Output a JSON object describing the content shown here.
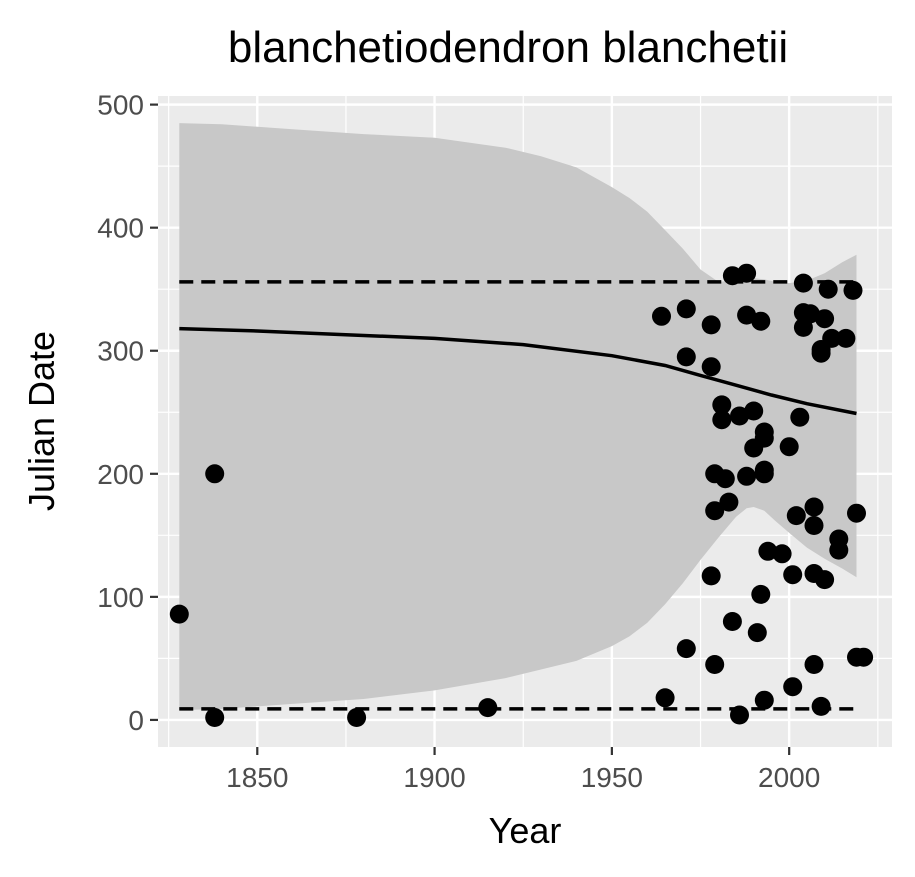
{
  "chart_data": {
    "type": "scatter",
    "title": "blanchetiodendron blanchetii",
    "xlabel": "Year",
    "ylabel": "Julian Date",
    "xlim": [
      1822,
      2029
    ],
    "ylim": [
      -22,
      507
    ],
    "x_ticks": [
      1850,
      1900,
      1950,
      2000
    ],
    "y_ticks": [
      0,
      100,
      200,
      300,
      400,
      500
    ],
    "x_tick_labels": [
      "1850",
      "1900",
      "1950",
      "2000"
    ],
    "y_tick_labels": [
      "0",
      "100",
      "200",
      "300",
      "400",
      "500"
    ],
    "grid": true,
    "legend": "none",
    "colors": {
      "panel": "#ebebeb",
      "grid": "#ffffff",
      "ribbon": "#c8c8c8",
      "points": "#000000",
      "line": "#000000"
    },
    "points": [
      [
        1828,
        86
      ],
      [
        1838,
        200
      ],
      [
        1838,
        2
      ],
      [
        1878,
        2
      ],
      [
        1915,
        10
      ],
      [
        1964,
        328
      ],
      [
        1965,
        18
      ],
      [
        1971,
        334
      ],
      [
        1971,
        295
      ],
      [
        1971,
        58
      ],
      [
        1978,
        321
      ],
      [
        1978,
        287
      ],
      [
        1978,
        117
      ],
      [
        1979,
        200
      ],
      [
        1979,
        170
      ],
      [
        1979,
        45
      ],
      [
        1981,
        256
      ],
      [
        1981,
        244
      ],
      [
        1982,
        196
      ],
      [
        1983,
        177
      ],
      [
        1984,
        361
      ],
      [
        1984,
        80
      ],
      [
        1986,
        247
      ],
      [
        1986,
        4
      ],
      [
        1988,
        363
      ],
      [
        1988,
        329
      ],
      [
        1988,
        198
      ],
      [
        1990,
        251
      ],
      [
        1990,
        221
      ],
      [
        1991,
        71
      ],
      [
        1992,
        324
      ],
      [
        1992,
        102
      ],
      [
        1993,
        234
      ],
      [
        1993,
        229
      ],
      [
        1993,
        203
      ],
      [
        1993,
        200
      ],
      [
        1993,
        16
      ],
      [
        1994,
        137
      ],
      [
        1998,
        135
      ],
      [
        2000,
        222
      ],
      [
        2001,
        118
      ],
      [
        2001,
        27
      ],
      [
        2002,
        166
      ],
      [
        2003,
        246
      ],
      [
        2004,
        355
      ],
      [
        2004,
        331
      ],
      [
        2004,
        319
      ],
      [
        2006,
        330
      ],
      [
        2007,
        173
      ],
      [
        2007,
        158
      ],
      [
        2007,
        119
      ],
      [
        2007,
        45
      ],
      [
        2009,
        301
      ],
      [
        2009,
        298
      ],
      [
        2009,
        11
      ],
      [
        2010,
        326
      ],
      [
        2010,
        114
      ],
      [
        2011,
        350
      ],
      [
        2012,
        310
      ],
      [
        2014,
        147
      ],
      [
        2014,
        138
      ],
      [
        2016,
        310
      ],
      [
        2018,
        349
      ],
      [
        2019,
        168
      ],
      [
        2019,
        51
      ],
      [
        2021,
        51
      ]
    ],
    "fit_line": {
      "x": [
        1828,
        1850,
        1875,
        1900,
        1925,
        1950,
        1965,
        1975,
        1985,
        1995,
        2005,
        2019
      ],
      "y": [
        318,
        316,
        313,
        310,
        305,
        296,
        288,
        280,
        272,
        264,
        257,
        249
      ]
    },
    "ribbon": {
      "x": [
        1828,
        1840,
        1860,
        1880,
        1900,
        1920,
        1930,
        1940,
        1950,
        1955,
        1960,
        1965,
        1970,
        1975,
        1980,
        1985,
        1988,
        1990,
        1993,
        1996,
        2000,
        2005,
        2010,
        2015,
        2019
      ],
      "upper": [
        485,
        484,
        480,
        476,
        473,
        465,
        458,
        449,
        433,
        424,
        413,
        398,
        383,
        366,
        356,
        357,
        360,
        359,
        358,
        356,
        355,
        357,
        363,
        372,
        378
      ],
      "lower": [
        8,
        9,
        13,
        17,
        24,
        34,
        41,
        48,
        60,
        68,
        79,
        94,
        111,
        130,
        148,
        165,
        172,
        173,
        170,
        162,
        152,
        140,
        131,
        123,
        116
      ]
    },
    "quantile_lines": {
      "x": [
        1828,
        2019
      ],
      "upper": 356,
      "lower": 9
    }
  }
}
